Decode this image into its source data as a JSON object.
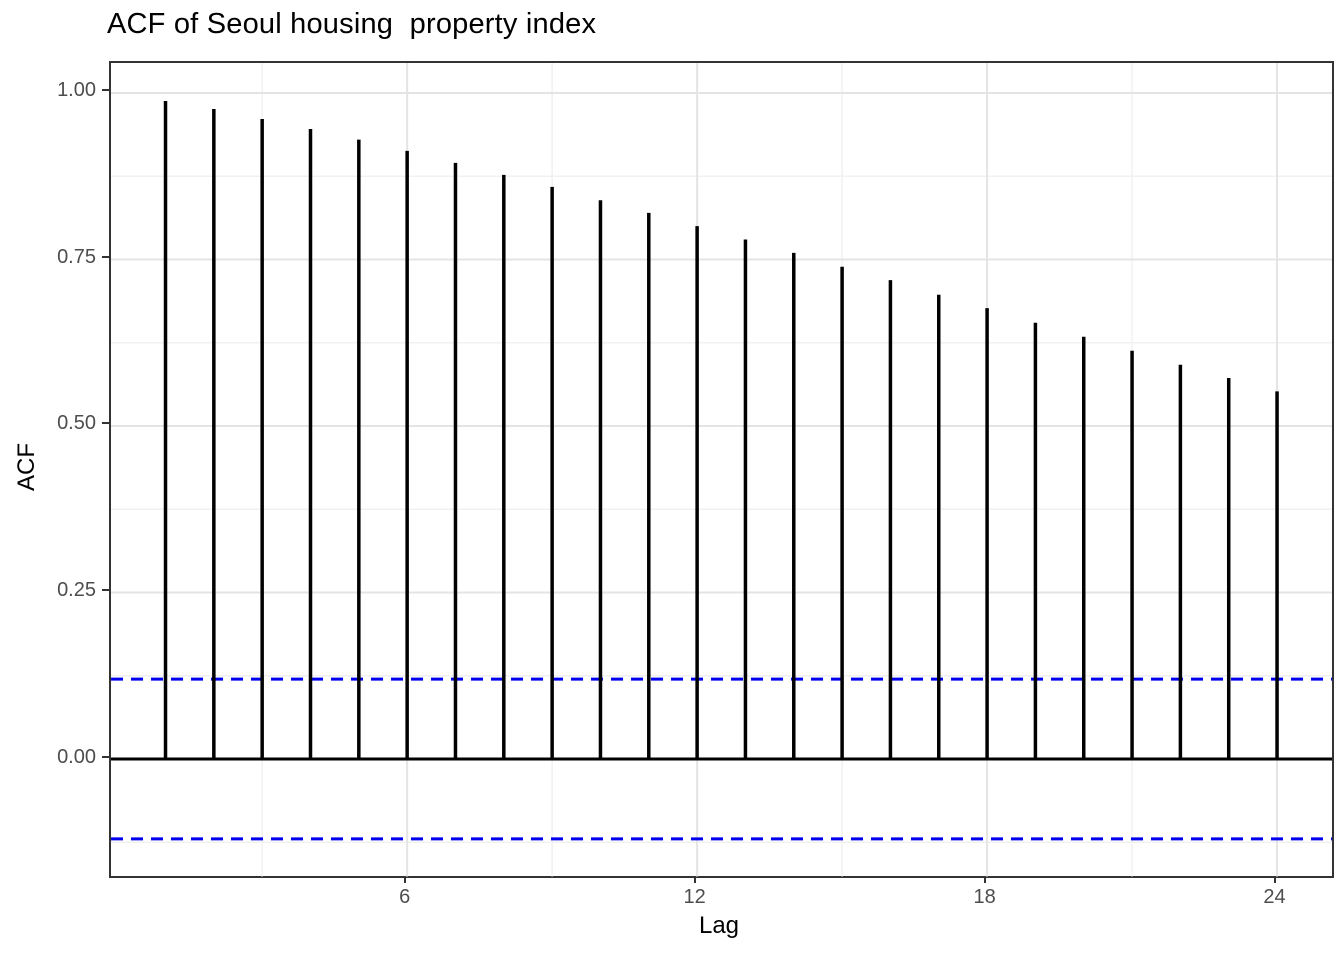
{
  "title": "ACF of Seoul housing  property index",
  "chart_data": {
    "type": "bar",
    "subtype": "acf-stem-plot",
    "title": "ACF of Seoul housing  property index",
    "xlabel": "Lag",
    "ylabel": "ACF",
    "x": [
      1,
      2,
      3,
      4,
      5,
      6,
      7,
      8,
      9,
      10,
      11,
      12,
      13,
      14,
      15,
      16,
      17,
      18,
      19,
      20,
      21,
      22,
      23,
      24
    ],
    "values": [
      0.988,
      0.976,
      0.961,
      0.946,
      0.93,
      0.913,
      0.895,
      0.877,
      0.859,
      0.839,
      0.82,
      0.8,
      0.78,
      0.76,
      0.739,
      0.719,
      0.697,
      0.677,
      0.655,
      0.634,
      0.613,
      0.592,
      0.572,
      0.552
    ],
    "confidence_bounds": {
      "upper": 0.12,
      "lower": -0.12,
      "line_style": "dashed"
    },
    "zero_line": 0,
    "x_ticks": [
      6,
      12,
      18,
      24
    ],
    "x_tick_labels": [
      "6",
      "12",
      "18",
      "24"
    ],
    "x_minor_gridlines": [
      3,
      9,
      15,
      21
    ],
    "y_tick_values": [
      0.0,
      0.25,
      0.5,
      0.75,
      1.0
    ],
    "y_tick_labels": [
      "0.00",
      "0.25",
      "0.50",
      "0.75",
      "1.00"
    ],
    "y_minor_gridlines": [
      -0.125,
      0.125,
      0.375,
      0.625,
      0.875
    ],
    "xlim": [
      -0.128,
      25.137
    ],
    "ylim": [
      -0.1764,
      1.045
    ],
    "grid": "major+minor",
    "legend_position": "none"
  },
  "colors": {
    "bar": "#000000",
    "zero_line": "#000000",
    "confidence_line": "#0000EE",
    "grid_major": "#E4E4E4",
    "grid_minor": "#F1F1F1",
    "panel_border": "#333333",
    "tick_mark": "#333333",
    "tick_label": "#4D4D4D",
    "text": "#000000",
    "background": "#FFFFFF"
  }
}
